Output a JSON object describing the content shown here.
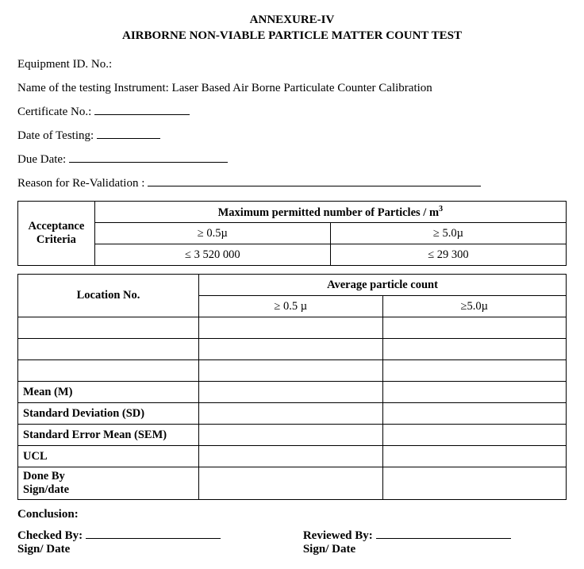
{
  "title_block": {
    "line1": "ANNEXURE-IV",
    "line2": "AIRBORNE NON-VIABLE PARTICLE MATTER COUNT TEST"
  },
  "fields": {
    "equipment_id_label": "Equipment ID. No.:",
    "instrument_label": "Name of the testing Instrument: Laser Based Air Borne Particulate Counter Calibration",
    "certificate_label": "Certificate No.:",
    "date_of_testing_label": "Date of Testing:",
    "due_date_label": "Due Date:",
    "reason_label": "Reason for Re-Validation    :"
  },
  "acceptance_table": {
    "row_header": "Acceptance Criteria",
    "top_header": "Maximum permitted number of Particles / m",
    "top_header_sup": "3",
    "col1_h": "≥ 0.5µ",
    "col2_h": "≥ 5.0µ",
    "col1_v": "≤ 3 520 000",
    "col2_v": "≤ 29 300"
  },
  "count_table": {
    "loc_header": "Location No.",
    "avg_header": "Average particle count",
    "col1": "≥ 0.5 µ",
    "col2": "≥5.0µ",
    "stat_rows": [
      "Mean (M)",
      "Standard Deviation (SD)",
      "Standard Error Mean (SEM)",
      "UCL",
      "Done By\n Sign/date"
    ]
  },
  "footer": {
    "conclusion_label": "Conclusion:",
    "checked_by_label": "Checked By:",
    "reviewed_by_label": "Reviewed By:",
    "sign_date_label": "Sign/ Date"
  },
  "style": {
    "blank_widths": {
      "certificate": 120,
      "date_of_testing": 80,
      "due_date": 200,
      "reason": 420,
      "sig": 170
    }
  }
}
